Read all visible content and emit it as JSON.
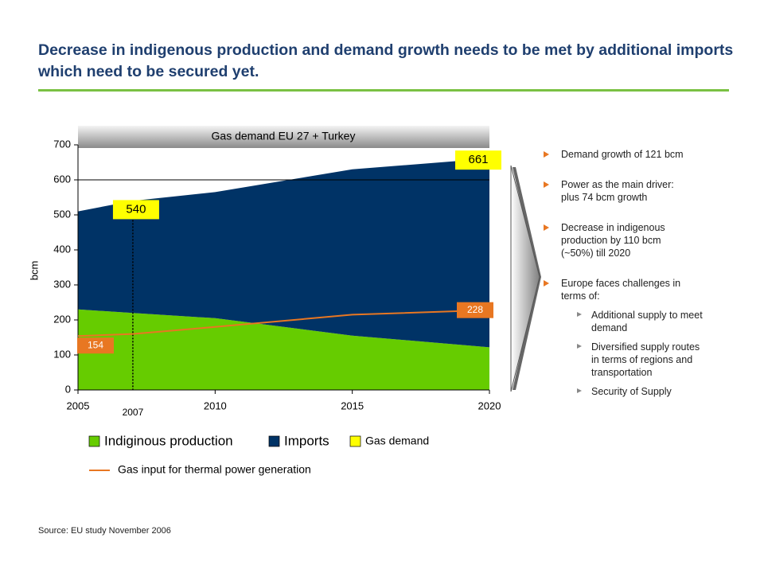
{
  "title": "Decrease in indigenous production and demand growth needs to be met by additional imports which need to be secured yet.",
  "chart_data": {
    "type": "area",
    "title": "Gas demand EU 27 + Turkey",
    "y_label": "bcm",
    "xlim": [
      2005,
      2020
    ],
    "xticks": [
      2005,
      2010,
      2015,
      2020
    ],
    "ylim": [
      0,
      700
    ],
    "yticks": [
      0,
      100,
      200,
      300,
      400,
      500,
      600,
      700
    ],
    "series": [
      {
        "name": "Indiginous production",
        "color": "#66cc00",
        "x": [
          2005,
          2007,
          2010,
          2015,
          2020
        ],
        "values": [
          230,
          220,
          205,
          155,
          122
        ]
      },
      {
        "name": "Imports",
        "color": "#003366",
        "x": [
          2005,
          2007,
          2010,
          2015,
          2020
        ],
        "values": [
          280,
          320,
          360,
          475,
          539
        ]
      },
      {
        "name": "Gas demand",
        "type": "label",
        "color": "#ffff00",
        "x": [
          2007,
          2020
        ],
        "values": [
          540,
          661
        ]
      },
      {
        "name": "Gas input for thermal power generation",
        "type": "line",
        "color": "#e87722",
        "x": [
          2005,
          2007,
          2010,
          2015,
          2020
        ],
        "values": [
          154,
          160,
          180,
          215,
          228
        ],
        "value_labels": [
          "154",
          null,
          null,
          null,
          "228"
        ]
      }
    ]
  },
  "bullets": [
    {
      "lines": [
        "Demand growth of 121 bcm"
      ]
    },
    {
      "lines": [
        "Power as the main driver:",
        "plus 74 bcm growth"
      ]
    },
    {
      "lines": [
        "Decrease in indigenous",
        "production by 110 bcm",
        "(~50%) till 2020"
      ]
    },
    {
      "lines": [
        "Europe faces challenges in",
        "terms of:"
      ],
      "sub": [
        {
          "lines": [
            "Additional supply to meet",
            "demand"
          ]
        },
        {
          "lines": [
            "Diversified supply routes",
            "in terms of regions and",
            "transportation"
          ]
        },
        {
          "lines": [
            "Security of Supply"
          ]
        }
      ]
    }
  ],
  "source": "Source: EU study November 2006"
}
